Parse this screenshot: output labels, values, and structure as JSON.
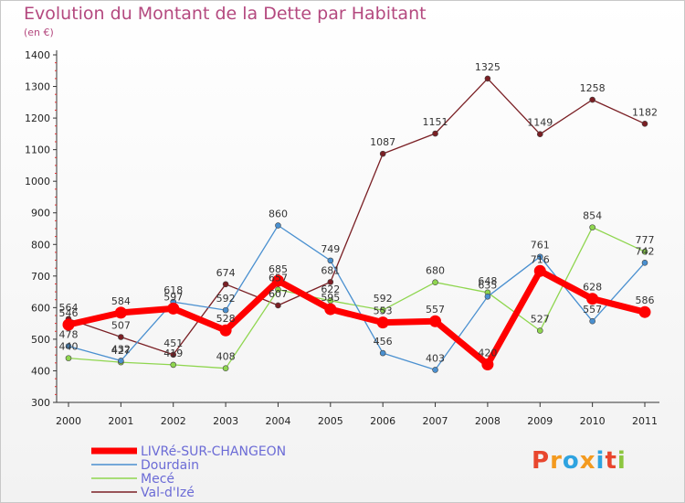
{
  "header": {
    "title": "Evolution du Montant de la Dette par Habitant",
    "unit": "(en €)"
  },
  "logo": {
    "text": "Proxiti",
    "colors": [
      "#e8462e",
      "#f39a1f",
      "#2ea3e0",
      "#f39a1f",
      "#2ea3e0",
      "#e8462e",
      "#8cc63f"
    ]
  },
  "chart_data": {
    "type": "line",
    "title": "Evolution du Montant de la Dette par Habitant",
    "ylabel": "(en €)",
    "xlabel": "",
    "x": [
      "2000",
      "2001",
      "2002",
      "2003",
      "2004",
      "2005",
      "2006",
      "2007",
      "2008",
      "2009",
      "2010",
      "2011"
    ],
    "ylim": [
      300,
      1400
    ],
    "yticks": [
      300,
      400,
      500,
      600,
      700,
      800,
      900,
      1000,
      1100,
      1200,
      1300,
      1400
    ],
    "grid": false,
    "legend_position": "bottom-left",
    "series": [
      {
        "name": "LIVRé-SUR-CHANGEON",
        "color": "#ff0000",
        "values": [
          546,
          584,
          597,
          528,
          685,
          595,
          553,
          557,
          420,
          716,
          628,
          586
        ]
      },
      {
        "name": "Dourdain",
        "color": "#4a90d0",
        "values": [
          478,
          432,
          618,
          592,
          860,
          749,
          456,
          403,
          635,
          761,
          557,
          742
        ]
      },
      {
        "name": "Mecé",
        "color": "#8fd64f",
        "values": [
          440,
          427,
          419,
          408,
          657,
          622,
          592,
          680,
          648,
          527,
          854,
          777
        ]
      },
      {
        "name": "Val-d'Izé",
        "color": "#7a1f24",
        "values": [
          564,
          507,
          451,
          674,
          607,
          681,
          1087,
          1151,
          1325,
          1149,
          1258,
          1182
        ]
      }
    ]
  }
}
